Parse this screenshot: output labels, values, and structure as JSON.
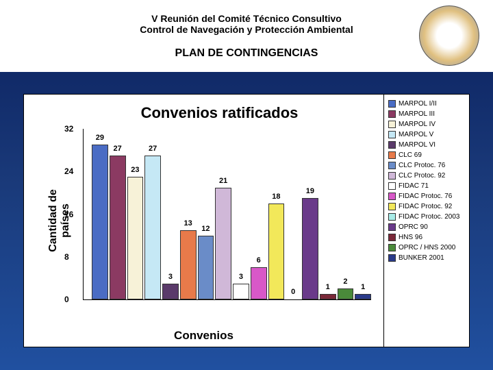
{
  "header": {
    "line1": "V Reunión del Comité Técnico Consultivo",
    "line2": "Control de Navegación y Protección Ambiental",
    "subtitle": "PLAN DE CONTINGENCIAS"
  },
  "chart": {
    "type": "bar",
    "title": "Convenios ratificados",
    "ylabel": "Cantidad de\npaíses",
    "xlabel": "Convenios",
    "ylim": [
      0,
      32
    ],
    "yticks": [
      0,
      8,
      16,
      24,
      32
    ],
    "background_color": "#ffffff",
    "series": [
      {
        "label": "MARPOL I/II",
        "value": 29,
        "color": "#4a6cc4"
      },
      {
        "label": "MARPOL III",
        "value": 27,
        "color": "#8b3a62"
      },
      {
        "label": "MARPOL IV",
        "value": 23,
        "color": "#f7f2d8"
      },
      {
        "label": "MARPOL V",
        "value": 27,
        "color": "#c5e8f5"
      },
      {
        "label": "MARPOL VI",
        "value": 3,
        "color": "#5a3a6a"
      },
      {
        "label": "CLC 69",
        "value": 13,
        "color": "#e87a4a"
      },
      {
        "label": "CLC Protoc. 76",
        "value": 12,
        "color": "#6a8cc8"
      },
      {
        "label": "CLC Protoc. 92",
        "value": 21,
        "color": "#d0b8d8"
      },
      {
        "label": "FIDAC 71",
        "value": 3,
        "color": "#ffffff"
      },
      {
        "label": "FIDAC Protoc. 76",
        "value": 6,
        "color": "#d858c8"
      },
      {
        "label": "FIDAC Protoc. 92",
        "value": 18,
        "color": "#f2e85a"
      },
      {
        "label": "FIDAC Protoc. 2003",
        "value": 0,
        "color": "#a8ece8"
      },
      {
        "label": "OPRC 90",
        "value": 19,
        "color": "#6a3a8a"
      },
      {
        "label": "HNS 96",
        "value": 1,
        "color": "#7a2838"
      },
      {
        "label": "OPRC / HNS 2000",
        "value": 2,
        "color": "#4a8a3a"
      },
      {
        "label": "BUNKER 2001",
        "value": 1,
        "color": "#2a3a8a"
      }
    ]
  }
}
